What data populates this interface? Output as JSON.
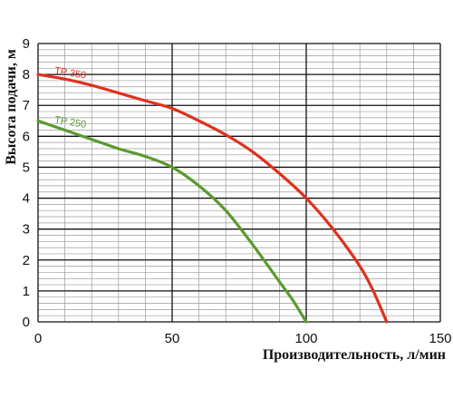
{
  "chart_data": {
    "type": "line",
    "xlabel": "Производительность, л/мин",
    "ylabel": "Высота подачи, м",
    "xlim": [
      0,
      150
    ],
    "ylim": [
      0,
      9
    ],
    "x_ticks": [
      "0",
      "50",
      "100",
      "150"
    ],
    "y_ticks": [
      "0",
      "1",
      "2",
      "3",
      "4",
      "5",
      "6",
      "7",
      "8",
      "9"
    ],
    "grid": true,
    "series": [
      {
        "name": "TP 350",
        "color": "#e0301e",
        "x": [
          0,
          10,
          20,
          30,
          40,
          50,
          60,
          70,
          80,
          90,
          100,
          110,
          120,
          125,
          130
        ],
        "y": [
          8.0,
          7.85,
          7.65,
          7.4,
          7.15,
          6.9,
          6.5,
          6.05,
          5.5,
          4.8,
          4.0,
          3.0,
          1.8,
          1.0,
          0.0
        ]
      },
      {
        "name": "TP 250",
        "color": "#5a9a2e",
        "x": [
          0,
          10,
          20,
          30,
          40,
          50,
          60,
          70,
          80,
          90,
          95,
          100
        ],
        "y": [
          6.5,
          6.2,
          5.9,
          5.6,
          5.35,
          5.0,
          4.4,
          3.6,
          2.5,
          1.3,
          0.7,
          0.0
        ]
      }
    ]
  }
}
